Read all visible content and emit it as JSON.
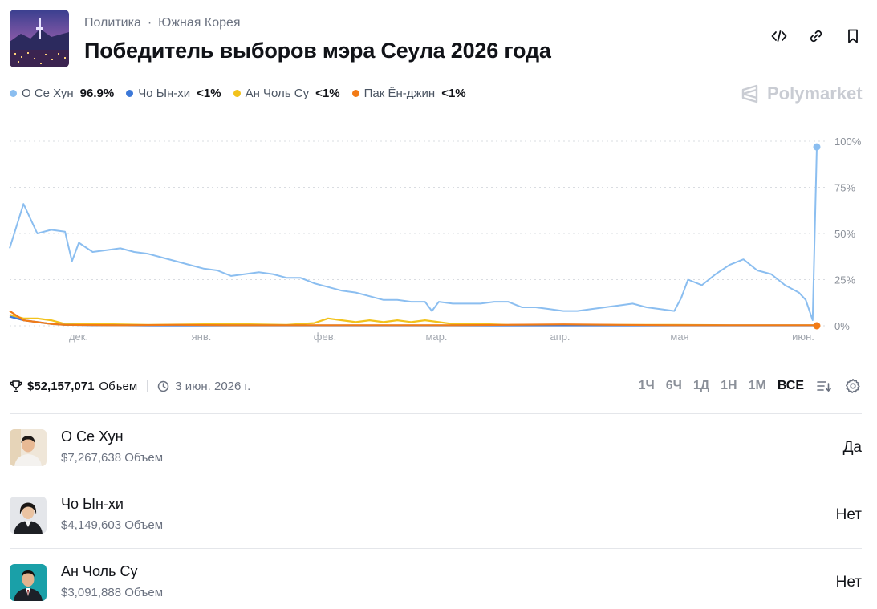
{
  "header": {
    "breadcrumbs": [
      "Политика",
      "Южная Корея"
    ],
    "breadcrumb_sep": "·",
    "title": "Победитель выборов мэра Сеула 2026 года",
    "actions": [
      "embed-icon",
      "link-icon",
      "bookmark-icon"
    ]
  },
  "brand": {
    "name": "Polymarket"
  },
  "legend": [
    {
      "name": "О Се Хун",
      "value": "96.9%",
      "color": "#8bbef0"
    },
    {
      "name": "Чо Ын-хи",
      "value": "<1%",
      "color": "#3c78d8"
    },
    {
      "name": "Ан Чоль Су",
      "value": "<1%",
      "color": "#f2c21b"
    },
    {
      "name": "Пак Ён-джин",
      "value": "<1%",
      "color": "#f27b16"
    }
  ],
  "chart_data": {
    "type": "line",
    "x_labels": [
      "дек.",
      "янв.",
      "фев.",
      "мар.",
      "апр.",
      "мая",
      "июн."
    ],
    "y_ticks": [
      "100%",
      "75%",
      "50%",
      "25%",
      "0%"
    ],
    "ylim": [
      0,
      100
    ],
    "grid": true,
    "series": [
      {
        "name": "О Се Хун",
        "color": "#8bbef0",
        "points": [
          [
            0,
            42
          ],
          [
            1,
            66
          ],
          [
            2,
            50
          ],
          [
            3,
            52
          ],
          [
            4,
            51
          ],
          [
            4.5,
            35
          ],
          [
            5,
            45
          ],
          [
            6,
            40
          ],
          [
            7,
            41
          ],
          [
            8,
            42
          ],
          [
            9,
            40
          ],
          [
            10,
            39
          ],
          [
            11,
            37
          ],
          [
            12,
            35
          ],
          [
            13,
            33
          ],
          [
            14,
            31
          ],
          [
            15,
            30
          ],
          [
            16,
            27
          ],
          [
            17,
            28
          ],
          [
            18,
            29
          ],
          [
            19,
            28
          ],
          [
            20,
            26
          ],
          [
            21,
            26
          ],
          [
            22,
            23
          ],
          [
            23,
            21
          ],
          [
            24,
            19
          ],
          [
            25,
            18
          ],
          [
            26,
            16
          ],
          [
            27,
            14
          ],
          [
            28,
            14
          ],
          [
            29,
            13
          ],
          [
            30,
            13
          ],
          [
            30.5,
            8
          ],
          [
            31,
            13
          ],
          [
            32,
            12
          ],
          [
            33,
            12
          ],
          [
            34,
            12
          ],
          [
            35,
            13
          ],
          [
            36,
            13
          ],
          [
            37,
            10
          ],
          [
            38,
            10
          ],
          [
            39,
            9
          ],
          [
            40,
            8
          ],
          [
            41,
            8
          ],
          [
            42,
            9
          ],
          [
            43,
            10
          ],
          [
            44,
            11
          ],
          [
            45,
            12
          ],
          [
            46,
            10
          ],
          [
            47,
            9
          ],
          [
            48,
            8
          ],
          [
            48.5,
            15
          ],
          [
            49,
            25
          ],
          [
            50,
            22
          ],
          [
            51,
            28
          ],
          [
            52,
            33
          ],
          [
            53,
            36
          ],
          [
            54,
            30
          ],
          [
            55,
            28
          ],
          [
            56,
            22
          ],
          [
            57,
            18
          ],
          [
            57.5,
            14
          ],
          [
            58,
            3
          ],
          [
            58.3,
            96.9
          ]
        ]
      },
      {
        "name": "Чо Ын-хи",
        "color": "#3c78d8",
        "points": [
          [
            0,
            5
          ],
          [
            1,
            3
          ],
          [
            2,
            2
          ],
          [
            3,
            1
          ],
          [
            4,
            0.5
          ],
          [
            6,
            0.3
          ],
          [
            10,
            0.2
          ],
          [
            20,
            0.2
          ],
          [
            30,
            0.2
          ],
          [
            40,
            0.2
          ],
          [
            50,
            0.2
          ],
          [
            58.3,
            0.2
          ]
        ]
      },
      {
        "name": "Ан Чоль Су",
        "color": "#f2c21b",
        "points": [
          [
            0,
            6
          ],
          [
            1,
            4
          ],
          [
            2,
            4
          ],
          [
            3,
            3
          ],
          [
            4,
            1
          ],
          [
            6,
            1
          ],
          [
            10,
            0.5
          ],
          [
            16,
            1
          ],
          [
            20,
            0.5
          ],
          [
            22,
            1.5
          ],
          [
            23,
            4
          ],
          [
            24,
            3
          ],
          [
            25,
            2
          ],
          [
            26,
            3
          ],
          [
            27,
            2
          ],
          [
            28,
            3
          ],
          [
            29,
            2
          ],
          [
            30,
            3
          ],
          [
            31,
            2
          ],
          [
            32,
            1
          ],
          [
            34,
            1
          ],
          [
            36,
            0.5
          ],
          [
            40,
            0.5
          ],
          [
            44,
            0.5
          ],
          [
            48,
            0.5
          ],
          [
            52,
            0.3
          ],
          [
            58.3,
            0.3
          ]
        ]
      },
      {
        "name": "Пак Ён-джин",
        "color": "#f27b16",
        "points": [
          [
            0,
            8
          ],
          [
            1,
            3
          ],
          [
            2,
            2
          ],
          [
            3,
            1
          ],
          [
            4,
            0.5
          ],
          [
            8,
            0.3
          ],
          [
            12,
            0.5
          ],
          [
            16,
            0.3
          ],
          [
            20,
            0.3
          ],
          [
            24,
            0.3
          ],
          [
            28,
            0.3
          ],
          [
            32,
            0.3
          ],
          [
            36,
            0.5
          ],
          [
            40,
            0.8
          ],
          [
            44,
            0.5
          ],
          [
            48,
            0.3
          ],
          [
            52,
            0.3
          ],
          [
            58.3,
            0.3
          ]
        ]
      }
    ]
  },
  "stats": {
    "volume": "$52,157,071",
    "volume_label": "Объем",
    "end_date": "3 июн. 2026 г."
  },
  "ranges": [
    "1Ч",
    "6Ч",
    "1Д",
    "1Н",
    "1М",
    "ВСЕ"
  ],
  "active_range": "ВСЕ",
  "outcomes": [
    {
      "name": "О Се Хун",
      "volume": "$7,267,638 Объем",
      "result": "Да"
    },
    {
      "name": "Чо Ын-хи",
      "volume": "$4,149,603 Объем",
      "result": "Нет"
    },
    {
      "name": "Ан Чоль Су",
      "volume": "$3,091,888 Объем",
      "result": "Нет"
    }
  ]
}
